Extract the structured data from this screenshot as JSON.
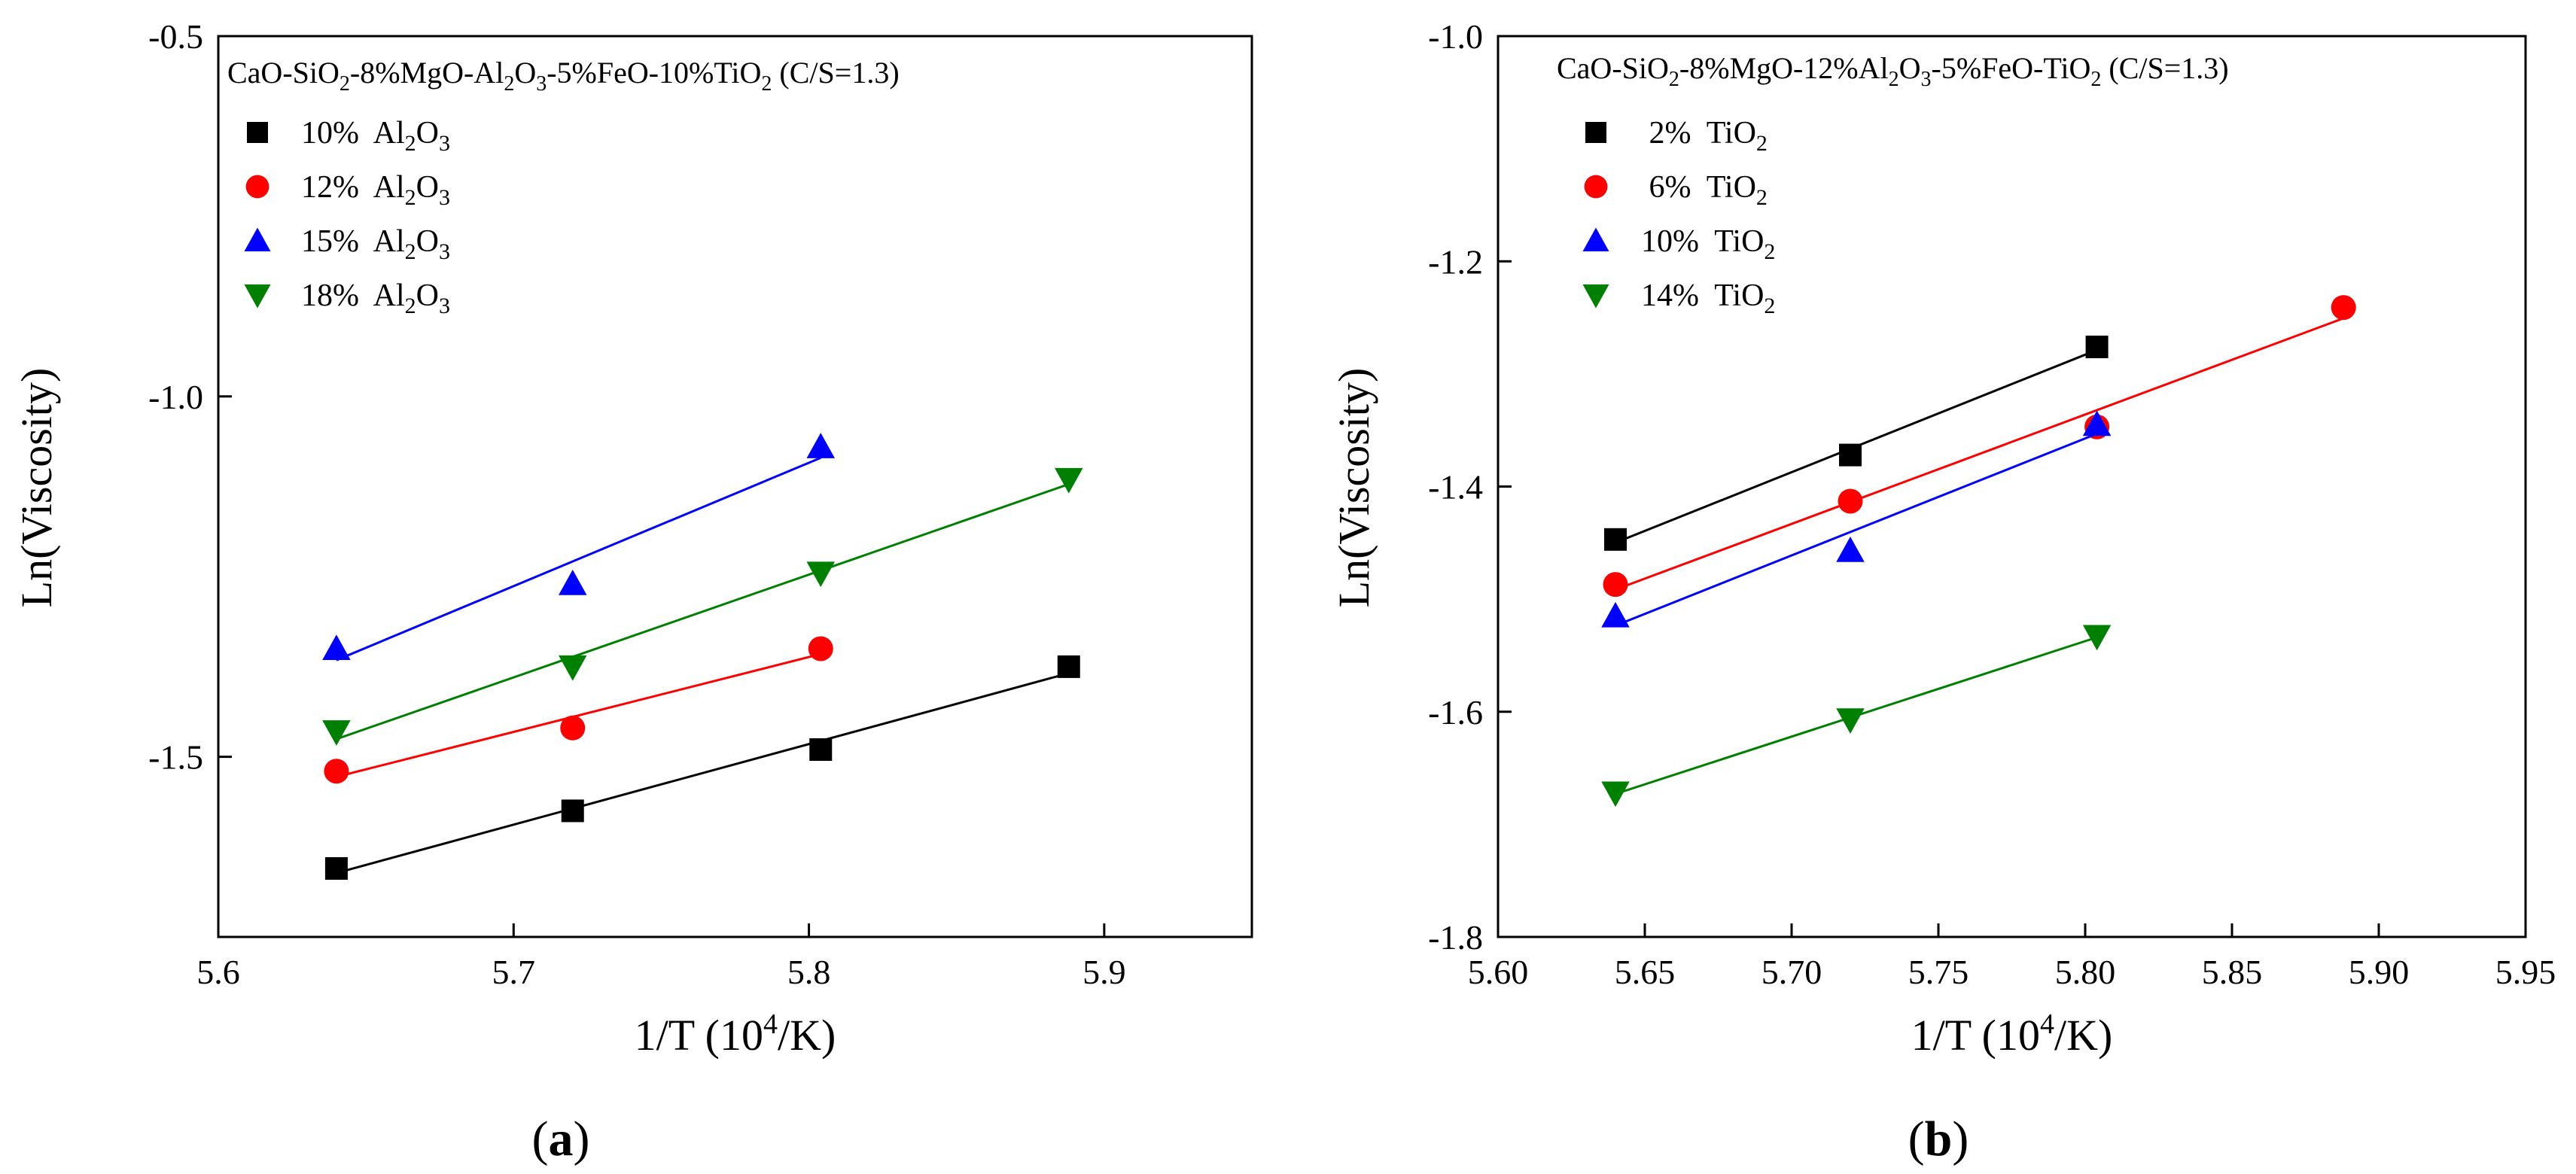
{
  "chart_data": [
    {
      "type": "scatter",
      "panel_label": "(a)",
      "title": "CaO-SiO2-8%MgO-Al2O3-5%FeO-10%TiO2 (C/S=1.3)",
      "title_parts": [
        {
          "t": "CaO-SiO",
          "s": "n"
        },
        {
          "t": "2",
          "s": "sub"
        },
        {
          "t": "-8%MgO-Al",
          "s": "n"
        },
        {
          "t": "2",
          "s": "sub"
        },
        {
          "t": "O",
          "s": "n"
        },
        {
          "t": "3",
          "s": "sub"
        },
        {
          "t": "-5%FeO-10%TiO",
          "s": "n"
        },
        {
          "t": "2",
          "s": "sub"
        },
        {
          "t": " (C/S=1.3)",
          "s": "n"
        }
      ],
      "xlabel": "1/T (10",
      "xlabel_sup": "4",
      "xlabel_tail": "/K)",
      "ylabel": "Ln(Viscosity)",
      "xlim": [
        5.6,
        5.95
      ],
      "ylim": [
        -1.75,
        -0.5
      ],
      "xticks": [
        5.6,
        5.7,
        5.8,
        5.9
      ],
      "xtick_labels": [
        "5.6",
        "5.7",
        "5.8",
        "5.9"
      ],
      "yticks": [
        -1.5,
        -1.0,
        -0.5
      ],
      "ytick_labels": [
        "-1.5",
        "-1.0",
        "-0.5"
      ],
      "legend_position": "top-left",
      "series": [
        {
          "name": "10% Al2O3",
          "label_main": "10%  Al",
          "label_sub1": "2",
          "label_o": "O",
          "label_sub2": "3",
          "marker": "square",
          "color": "#000000",
          "x": [
            5.64,
            5.72,
            5.804,
            5.888
          ],
          "y": [
            -1.655,
            -1.575,
            -1.49,
            -1.375
          ],
          "fit": [
            5.64,
            5.888
          ]
        },
        {
          "name": "12% Al2O3",
          "label_main": "12%  Al",
          "label_sub1": "2",
          "label_o": "O",
          "label_sub2": "3",
          "marker": "circle",
          "color": "#ff0000",
          "x": [
            5.64,
            5.72,
            5.804
          ],
          "y": [
            -1.52,
            -1.46,
            -1.35
          ],
          "fit": [
            5.64,
            5.804
          ]
        },
        {
          "name": "15% Al2O3",
          "label_main": "15%  Al",
          "label_sub1": "2",
          "label_o": "O",
          "label_sub2": "3",
          "marker": "triangle-up",
          "color": "#0000ff",
          "x": [
            5.64,
            5.72,
            5.804
          ],
          "y": [
            -1.35,
            -1.26,
            -1.07
          ],
          "fit": [
            5.64,
            5.804
          ]
        },
        {
          "name": "18% Al2O3",
          "label_main": "18%  Al",
          "label_sub1": "2",
          "label_o": "O",
          "label_sub2": "3",
          "marker": "triangle-down",
          "color": "#008000",
          "x": [
            5.64,
            5.72,
            5.804,
            5.888
          ],
          "y": [
            -1.465,
            -1.375,
            -1.245,
            -1.115
          ],
          "fit": [
            5.64,
            5.888
          ]
        }
      ]
    },
    {
      "type": "scatter",
      "panel_label": "(b)",
      "title": "CaO-SiO2-8%MgO-12%Al2O3-5%FeO-TiO2 (C/S=1.3)",
      "title_parts": [
        {
          "t": "CaO-SiO",
          "s": "n"
        },
        {
          "t": "2",
          "s": "sub"
        },
        {
          "t": "-8%MgO-12%Al",
          "s": "n"
        },
        {
          "t": "2",
          "s": "sub"
        },
        {
          "t": "O",
          "s": "n"
        },
        {
          "t": "3",
          "s": "sub"
        },
        {
          "t": "-5%FeO-TiO",
          "s": "n"
        },
        {
          "t": "2",
          "s": "sub"
        },
        {
          "t": " (C/S=1.3)",
          "s": "n"
        }
      ],
      "xlabel": "1/T (10",
      "xlabel_sup": "4",
      "xlabel_tail": "/K)",
      "ylabel": "Ln(Viscosity)",
      "xlim": [
        5.6,
        5.95
      ],
      "ylim": [
        -1.8,
        -1.0
      ],
      "xticks": [
        5.6,
        5.65,
        5.7,
        5.75,
        5.8,
        5.85,
        5.9,
        5.95
      ],
      "xtick_labels": [
        "5.60",
        "5.65",
        "5.70",
        "5.75",
        "5.80",
        "5.85",
        "5.90",
        "5.95"
      ],
      "yticks": [
        -1.8,
        -1.6,
        -1.4,
        -1.2,
        -1.0
      ],
      "ytick_labels": [
        "-1.8",
        "-1.6",
        "-1.4",
        "-1.2",
        "-1.0"
      ],
      "legend_position": "top-left",
      "series": [
        {
          "name": "2% TiO2",
          "label_main": " 2%  TiO",
          "label_sub1": "2",
          "marker": "square",
          "color": "#000000",
          "x": [
            5.64,
            5.72,
            5.804
          ],
          "y": [
            -1.447,
            -1.372,
            -1.276
          ],
          "fit": [
            5.64,
            5.804
          ]
        },
        {
          "name": "6% TiO2",
          "label_main": " 6%  TiO",
          "label_sub1": "2",
          "marker": "circle",
          "color": "#ff0000",
          "x": [
            5.64,
            5.72,
            5.804,
            5.888
          ],
          "y": [
            -1.487,
            -1.413,
            -1.347,
            -1.241
          ],
          "fit": [
            5.64,
            5.888
          ]
        },
        {
          "name": "10% TiO2",
          "label_main": "10%  TiO",
          "label_sub1": "2",
          "marker": "triangle-up",
          "color": "#0000ff",
          "x": [
            5.64,
            5.72,
            5.804
          ],
          "y": [
            -1.515,
            -1.457,
            -1.345
          ],
          "fit": [
            5.64,
            5.804
          ]
        },
        {
          "name": "14% TiO2",
          "label_main": "14%  TiO",
          "label_sub1": "2",
          "marker": "triangle-down",
          "color": "#008000",
          "x": [
            5.64,
            5.72,
            5.804
          ],
          "y": [
            -1.672,
            -1.607,
            -1.533
          ],
          "fit": [
            5.64,
            5.804
          ]
        }
      ]
    }
  ]
}
